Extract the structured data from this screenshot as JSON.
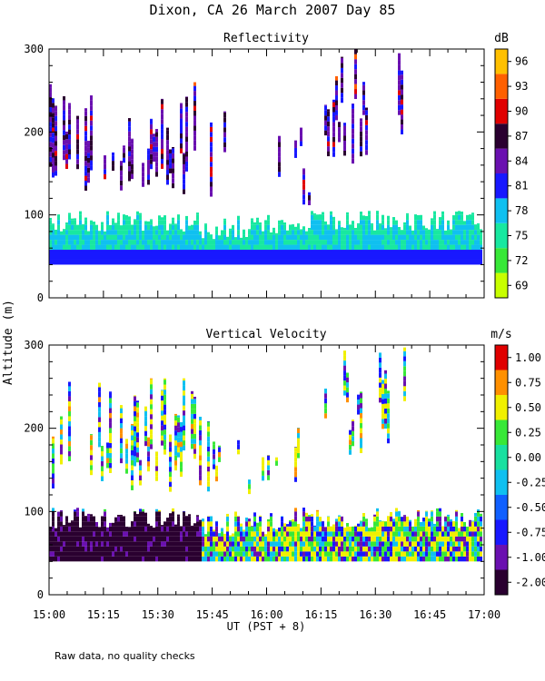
{
  "title": "Dixon, CA 26 March 2007  Day  85",
  "note": "Raw data, no quality checks",
  "chart_data": [
    {
      "type": "heatmap",
      "title": "Reflectivity",
      "ylabel": "Altitude (m)",
      "xlabel": "UT  (PST + 8)",
      "x_ticks": [
        "15:00",
        "15:15",
        "15:30",
        "15:45",
        "16:00",
        "16:15",
        "16:30",
        "16:45",
        "17:00"
      ],
      "xlim": [
        "15:00",
        "17:00"
      ],
      "y_ticks": [
        0,
        100,
        200,
        300
      ],
      "ylim": [
        0,
        300
      ],
      "colorbar": {
        "unit": "dB",
        "labels": [
          69,
          72,
          75,
          78,
          81,
          84,
          87,
          90,
          93,
          96
        ],
        "colors": [
          "#c8ff00",
          "#38e838",
          "#18e8a0",
          "#10c0f0",
          "#1818ff",
          "#6a10b0",
          "#2a0030",
          "#e00000",
          "#ff6000",
          "#ffc000"
        ]
      },
      "data_bottom_m": 40,
      "data_top_m": 300
    },
    {
      "type": "heatmap",
      "title": "Vertical Velocity",
      "ylabel": "Altitude (m)",
      "xlabel": "UT  (PST + 8)",
      "x_ticks": [
        "15:00",
        "15:15",
        "15:30",
        "15:45",
        "16:00",
        "16:15",
        "16:30",
        "16:45",
        "17:00"
      ],
      "xlim": [
        "15:00",
        "17:00"
      ],
      "y_ticks": [
        0,
        100,
        200,
        300
      ],
      "ylim": [
        0,
        300
      ],
      "colorbar": {
        "unit": "m/s",
        "labels": [
          "-2.00",
          "-1.00",
          "-0.75",
          "-0.50",
          "-0.25",
          "0.00",
          "0.25",
          "0.50",
          "0.75",
          "1.00"
        ],
        "colors": [
          "#2a0030",
          "#6a10b0",
          "#1818ff",
          "#1060ff",
          "#10c0f0",
          "#18e0a0",
          "#38e838",
          "#f0f000",
          "#ff9000",
          "#e00000"
        ]
      },
      "data_bottom_m": 40,
      "data_top_m": 300
    }
  ]
}
